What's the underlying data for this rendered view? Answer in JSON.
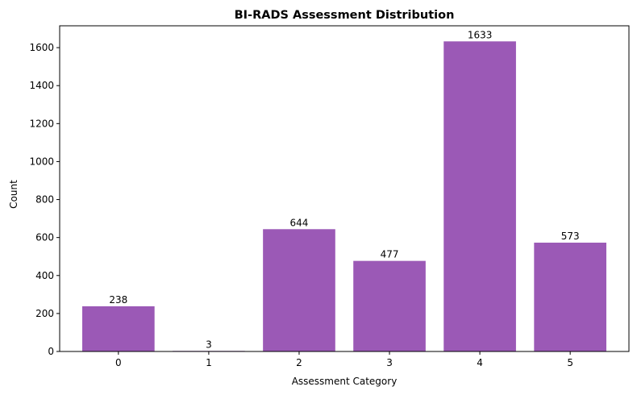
{
  "chart_data": {
    "type": "bar",
    "title": "BI-RADS Assessment Distribution",
    "xlabel": "Assessment Category",
    "ylabel": "Count",
    "categories": [
      "0",
      "1",
      "2",
      "3",
      "4",
      "5"
    ],
    "values": [
      238,
      3,
      644,
      477,
      1633,
      573
    ],
    "data_labels": [
      "238",
      "3",
      "644",
      "477",
      "1633",
      "573"
    ],
    "ylim": [
      0,
      1715
    ],
    "yticks": [
      0,
      200,
      400,
      600,
      800,
      1000,
      1200,
      1400,
      1600
    ],
    "ytick_labels": [
      "0",
      "200",
      "400",
      "600",
      "800",
      "1000",
      "1200",
      "1400",
      "1600"
    ],
    "bar_color": "#9b59b6",
    "grid": false,
    "legend": "none"
  }
}
